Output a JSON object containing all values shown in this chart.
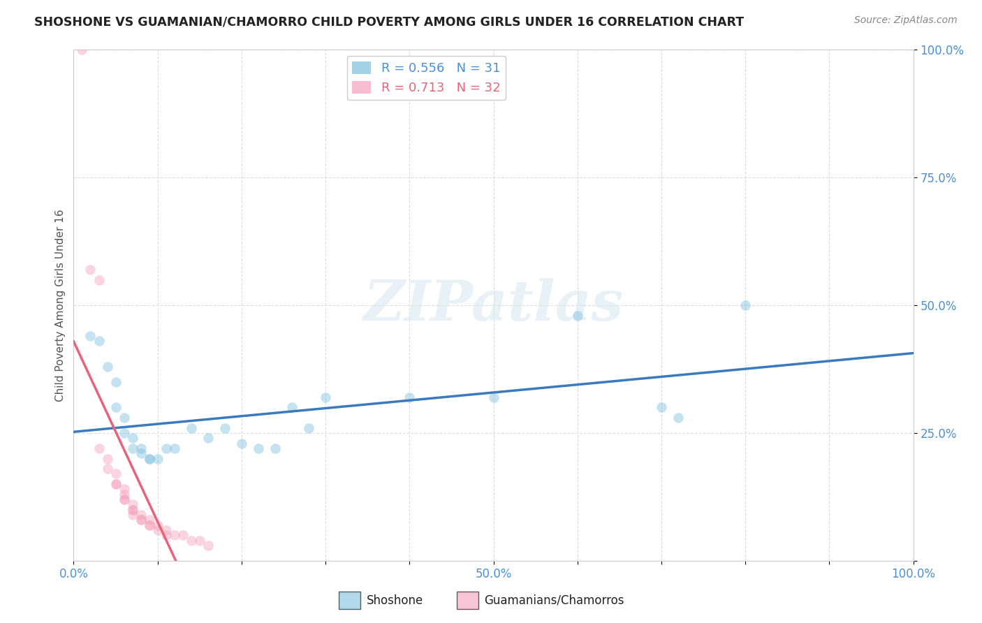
{
  "title": "SHOSHONE VS GUAMANIAN/CHAMORRO CHILD POVERTY AMONG GIRLS UNDER 16 CORRELATION CHART",
  "source": "Source: ZipAtlas.com",
  "ylabel": "Child Poverty Among Girls Under 16",
  "watermark": "ZIPatlas",
  "shoshone_scatter": [
    [
      0.02,
      0.44
    ],
    [
      0.03,
      0.43
    ],
    [
      0.04,
      0.38
    ],
    [
      0.05,
      0.35
    ],
    [
      0.05,
      0.3
    ],
    [
      0.06,
      0.28
    ],
    [
      0.06,
      0.25
    ],
    [
      0.07,
      0.24
    ],
    [
      0.07,
      0.22
    ],
    [
      0.08,
      0.22
    ],
    [
      0.08,
      0.21
    ],
    [
      0.09,
      0.2
    ],
    [
      0.09,
      0.2
    ],
    [
      0.1,
      0.2
    ],
    [
      0.11,
      0.22
    ],
    [
      0.12,
      0.22
    ],
    [
      0.14,
      0.26
    ],
    [
      0.16,
      0.24
    ],
    [
      0.18,
      0.26
    ],
    [
      0.2,
      0.23
    ],
    [
      0.22,
      0.22
    ],
    [
      0.24,
      0.22
    ],
    [
      0.26,
      0.3
    ],
    [
      0.28,
      0.26
    ],
    [
      0.3,
      0.32
    ],
    [
      0.4,
      0.32
    ],
    [
      0.5,
      0.32
    ],
    [
      0.6,
      0.48
    ],
    [
      0.7,
      0.3
    ],
    [
      0.72,
      0.28
    ],
    [
      0.8,
      0.5
    ]
  ],
  "guamanian_scatter": [
    [
      0.01,
      1.0
    ],
    [
      0.02,
      0.57
    ],
    [
      0.03,
      0.55
    ],
    [
      0.03,
      0.22
    ],
    [
      0.04,
      0.2
    ],
    [
      0.04,
      0.18
    ],
    [
      0.05,
      0.17
    ],
    [
      0.05,
      0.15
    ],
    [
      0.05,
      0.15
    ],
    [
      0.06,
      0.14
    ],
    [
      0.06,
      0.13
    ],
    [
      0.06,
      0.12
    ],
    [
      0.06,
      0.12
    ],
    [
      0.07,
      0.11
    ],
    [
      0.07,
      0.1
    ],
    [
      0.07,
      0.1
    ],
    [
      0.07,
      0.09
    ],
    [
      0.08,
      0.09
    ],
    [
      0.08,
      0.08
    ],
    [
      0.08,
      0.08
    ],
    [
      0.09,
      0.08
    ],
    [
      0.09,
      0.07
    ],
    [
      0.09,
      0.07
    ],
    [
      0.1,
      0.07
    ],
    [
      0.1,
      0.06
    ],
    [
      0.11,
      0.06
    ],
    [
      0.11,
      0.05
    ],
    [
      0.12,
      0.05
    ],
    [
      0.13,
      0.05
    ],
    [
      0.14,
      0.04
    ],
    [
      0.15,
      0.04
    ],
    [
      0.16,
      0.03
    ]
  ],
  "shoshone_color": "#7fbfdf",
  "guamanian_color": "#f4a0b8",
  "shoshone_line_color": "#3a7abf",
  "guamanian_line_color": "#e8637a",
  "bg_color": "#ffffff",
  "grid_color": "#dddddd",
  "xlim": [
    0,
    1.0
  ],
  "ylim": [
    0,
    1.0
  ],
  "xticks": [
    0.0,
    0.1,
    0.2,
    0.3,
    0.4,
    0.5,
    0.6,
    0.7,
    0.8,
    0.9,
    1.0
  ],
  "yticks": [
    0.0,
    0.25,
    0.5,
    0.75,
    1.0
  ],
  "xtick_labels": [
    "0.0%",
    "",
    "",
    "",
    "",
    "50.0%",
    "",
    "",
    "",
    "",
    "100.0%"
  ],
  "ytick_labels": [
    "",
    "25.0%",
    "50.0%",
    "75.0%",
    "100.0%"
  ],
  "marker_size": 110,
  "marker_alpha": 0.45,
  "R_shoshone": 0.556,
  "N_shoshone": 31,
  "R_guamanian": 0.713,
  "N_guamanian": 32,
  "sh_line_xrange": [
    0.0,
    1.0
  ],
  "gu_line_xrange": [
    0.0,
    0.45
  ]
}
